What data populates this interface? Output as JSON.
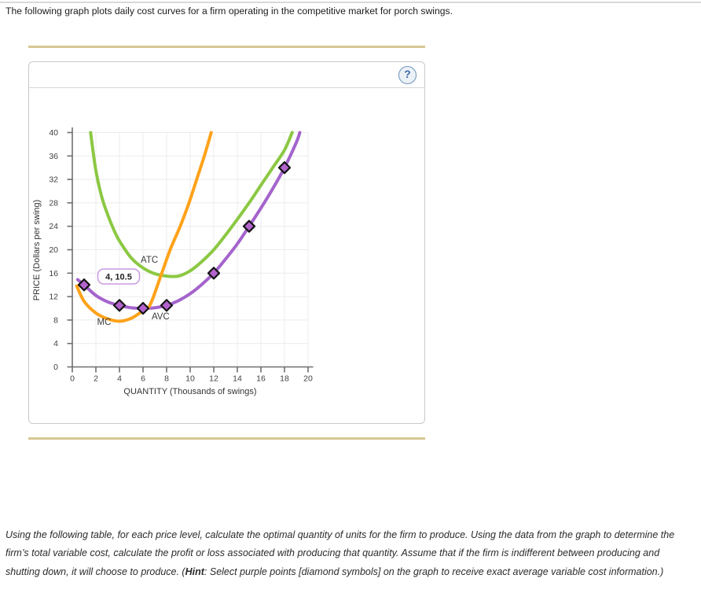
{
  "page": {
    "intro_text": "The following graph plots daily cost curves for a firm operating in the competitive market for porch swings.",
    "instructions": {
      "before_hint": "Using the following table, for each price level, calculate the optimal quantity of units for the firm to produce. Using the data from the graph to determine the firm’s total variable cost, calculate the profit or loss associated with producing that quantity. Assume that if the firm is indifferent between producing and shutting down, it will choose to produce. (",
      "hint_word": "Hint",
      "after_hint": ": Select purple points [diamond symbols] on the graph to receive exact average variable cost information.)"
    },
    "divider_color": "#d6c792"
  },
  "panel": {
    "help_label": "?",
    "help_color": "#39689b"
  },
  "chart_data": {
    "type": "line",
    "title": "",
    "xlabel": "QUANTITY (Thousands of swings)",
    "ylabel": "PRICE (Dollars per swing)",
    "xlim": [
      0,
      20
    ],
    "ylim": [
      0,
      40
    ],
    "x_ticks": [
      0,
      2,
      4,
      6,
      8,
      10,
      12,
      14,
      16,
      18,
      20
    ],
    "y_ticks": [
      0,
      4,
      8,
      12,
      16,
      20,
      24,
      28,
      32,
      36,
      40
    ],
    "grid": true,
    "series": [
      {
        "name": "ATC",
        "color": "#8cc843",
        "points": [
          [
            1.55,
            40
          ],
          [
            2,
            33.5
          ],
          [
            2.5,
            29
          ],
          [
            3,
            26
          ],
          [
            3.5,
            23.5
          ],
          [
            4,
            21.5
          ],
          [
            5,
            18.6
          ],
          [
            6,
            16.9
          ],
          [
            7,
            15.9
          ],
          [
            8,
            15.5
          ],
          [
            9,
            15.5
          ],
          [
            10,
            16.4
          ],
          [
            11,
            18
          ],
          [
            12,
            20
          ],
          [
            13,
            22.5
          ],
          [
            14,
            25.2
          ],
          [
            15,
            28
          ],
          [
            16,
            31
          ],
          [
            17,
            34
          ],
          [
            18,
            37
          ],
          [
            18.65,
            40
          ]
        ]
      },
      {
        "name": "AVC",
        "color": "#a464cc",
        "points": [
          [
            0.45,
            14.9
          ],
          [
            1,
            14
          ],
          [
            2,
            12.2
          ],
          [
            3,
            11.1
          ],
          [
            4,
            10.5
          ],
          [
            5,
            10.1
          ],
          [
            6,
            10
          ],
          [
            7,
            10.1
          ],
          [
            8,
            10.5
          ],
          [
            9,
            11.3
          ],
          [
            10,
            12.5
          ],
          [
            11,
            14.1
          ],
          [
            12,
            16
          ],
          [
            13,
            18.4
          ],
          [
            14,
            21
          ],
          [
            15,
            24
          ],
          [
            16,
            27.1
          ],
          [
            17,
            30.4
          ],
          [
            18,
            34
          ],
          [
            19,
            38.3
          ],
          [
            19.3,
            40
          ]
        ]
      },
      {
        "name": "MC",
        "color": "#ffa21a",
        "points": [
          [
            0.38,
            13.8
          ],
          [
            1,
            11.2
          ],
          [
            2,
            9.2
          ],
          [
            3,
            8.2
          ],
          [
            4,
            7.8
          ],
          [
            5,
            8.3
          ],
          [
            6,
            9.6
          ],
          [
            6.6,
            10.6
          ],
          [
            7.5,
            15.5
          ],
          [
            8.3,
            20
          ],
          [
            9.15,
            24
          ],
          [
            9.9,
            28
          ],
          [
            10.55,
            32
          ],
          [
            11.2,
            36
          ],
          [
            11.78,
            40
          ]
        ]
      }
    ],
    "avc_points": {
      "marker": "diamond",
      "fill": "#b263cc",
      "values": [
        [
          1,
          14
        ],
        [
          4,
          10.5
        ],
        [
          6,
          10
        ],
        [
          8,
          10.5
        ],
        [
          12,
          16
        ],
        [
          15,
          24
        ],
        [
          18,
          34
        ]
      ]
    },
    "curve_labels": [
      {
        "text": "ATC",
        "q": 5.8,
        "p": 17.8
      },
      {
        "text": "MC",
        "q": 2.1,
        "p": 7.2
      },
      {
        "text": "AVC",
        "q": 6.73,
        "p": 8.1
      }
    ],
    "tooltip": {
      "text": "4, 10.5",
      "q": 4,
      "p": 10.5,
      "border": "#c89ade"
    }
  }
}
